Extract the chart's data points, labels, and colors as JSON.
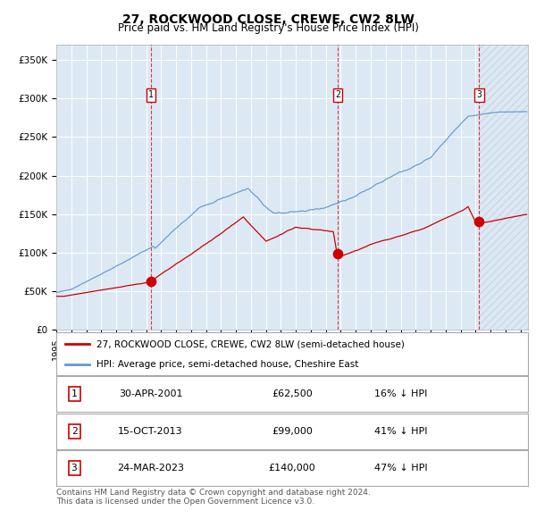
{
  "title": "27, ROCKWOOD CLOSE, CREWE, CW2 8LW",
  "subtitle": "Price paid vs. HM Land Registry's House Price Index (HPI)",
  "ylabel_ticks": [
    "£0",
    "£50K",
    "£100K",
    "£150K",
    "£200K",
    "£250K",
    "£300K",
    "£350K"
  ],
  "ytick_vals": [
    0,
    50000,
    100000,
    150000,
    200000,
    250000,
    300000,
    350000
  ],
  "ylim": [
    0,
    370000
  ],
  "xlim_start": 1995.0,
  "xlim_end": 2026.5,
  "sale_dates": [
    2001.33,
    2013.79,
    2023.23
  ],
  "sale_prices": [
    62500,
    99000,
    140000
  ],
  "sale_labels": [
    "1",
    "2",
    "3"
  ],
  "sale_date_strs": [
    "30-APR-2001",
    "15-OCT-2013",
    "24-MAR-2023"
  ],
  "sale_price_strs": [
    "£62,500",
    "£99,000",
    "£140,000"
  ],
  "sale_hpi_strs": [
    "16% ↓ HPI",
    "41% ↓ HPI",
    "47% ↓ HPI"
  ],
  "legend_red": "27, ROCKWOOD CLOSE, CREWE, CW2 8LW (semi-detached house)",
  "legend_blue": "HPI: Average price, semi-detached house, Cheshire East",
  "footer": "Contains HM Land Registry data © Crown copyright and database right 2024.\nThis data is licensed under the Open Government Licence v3.0.",
  "bg_color": "#dce9f5",
  "grid_color": "#ffffff",
  "red_line_color": "#cc0000",
  "blue_line_color": "#6699cc",
  "title_fontsize": 10,
  "subtitle_fontsize": 8.5,
  "tick_fontsize": 7.5,
  "legend_fontsize": 7.5,
  "table_fontsize": 8,
  "footer_fontsize": 6.5
}
